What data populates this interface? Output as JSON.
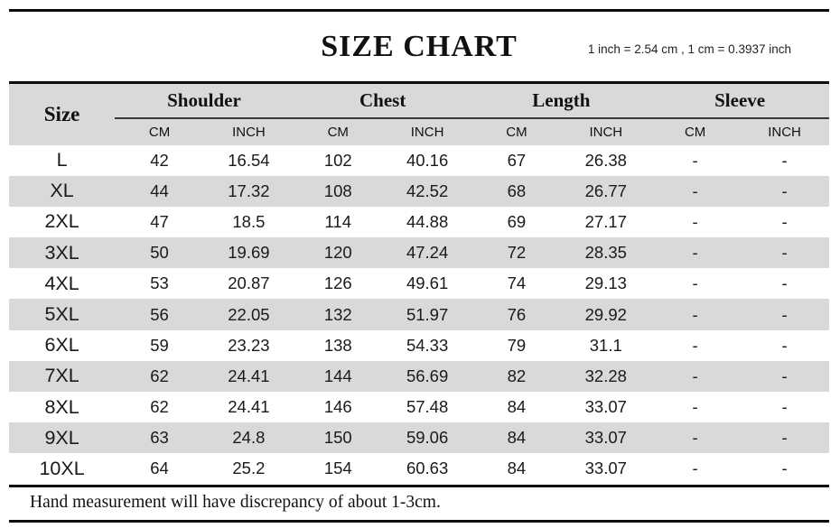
{
  "title": "SIZE CHART",
  "conversion_note": "1 inch = 2.54 cm , 1 cm = 0.3937 inch",
  "table": {
    "size_header": "Size",
    "groups": [
      {
        "label": "Shoulder"
      },
      {
        "label": "Chest"
      },
      {
        "label": "Length"
      },
      {
        "label": "Sleeve"
      }
    ],
    "unit_headers": [
      "CM",
      "INCH"
    ],
    "rows": [
      {
        "size": "L",
        "values": [
          "42",
          "16.54",
          "102",
          "40.16",
          "67",
          "26.38",
          "-",
          "-"
        ]
      },
      {
        "size": "XL",
        "values": [
          "44",
          "17.32",
          "108",
          "42.52",
          "68",
          "26.77",
          "-",
          "-"
        ]
      },
      {
        "size": "2XL",
        "values": [
          "47",
          "18.5",
          "114",
          "44.88",
          "69",
          "27.17",
          "-",
          "-"
        ]
      },
      {
        "size": "3XL",
        "values": [
          "50",
          "19.69",
          "120",
          "47.24",
          "72",
          "28.35",
          "-",
          "-"
        ]
      },
      {
        "size": "4XL",
        "values": [
          "53",
          "20.87",
          "126",
          "49.61",
          "74",
          "29.13",
          "-",
          "-"
        ]
      },
      {
        "size": "5XL",
        "values": [
          "56",
          "22.05",
          "132",
          "51.97",
          "76",
          "29.92",
          "-",
          "-"
        ]
      },
      {
        "size": "6XL",
        "values": [
          "59",
          "23.23",
          "138",
          "54.33",
          "79",
          "31.1",
          "-",
          "-"
        ]
      },
      {
        "size": "7XL",
        "values": [
          "62",
          "24.41",
          "144",
          "56.69",
          "82",
          "32.28",
          "-",
          "-"
        ]
      },
      {
        "size": "8XL",
        "values": [
          "62",
          "24.41",
          "146",
          "57.48",
          "84",
          "33.07",
          "-",
          "-"
        ]
      },
      {
        "size": "9XL",
        "values": [
          "63",
          "24.8",
          "150",
          "59.06",
          "84",
          "33.07",
          "-",
          "-"
        ]
      },
      {
        "size": "10XL",
        "values": [
          "64",
          "25.2",
          "154",
          "60.63",
          "84",
          "33.07",
          "-",
          "-"
        ]
      }
    ]
  },
  "footer_note": "Hand measurement will have discrepancy of about 1-3cm.",
  "colors": {
    "header_bg": "#d9d9d9",
    "row_alt_bg": "#d9d9d9",
    "rule": "#0d0d0d",
    "text": "#1a1a1a"
  }
}
